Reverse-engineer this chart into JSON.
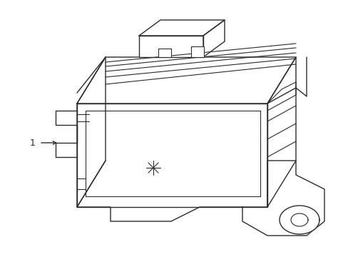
{
  "background_color": "#ffffff",
  "line_color": "#2b2b2b",
  "line_width": 1.0,
  "label_text": "1",
  "figsize": [
    4.89,
    3.6
  ],
  "dpi": 100
}
